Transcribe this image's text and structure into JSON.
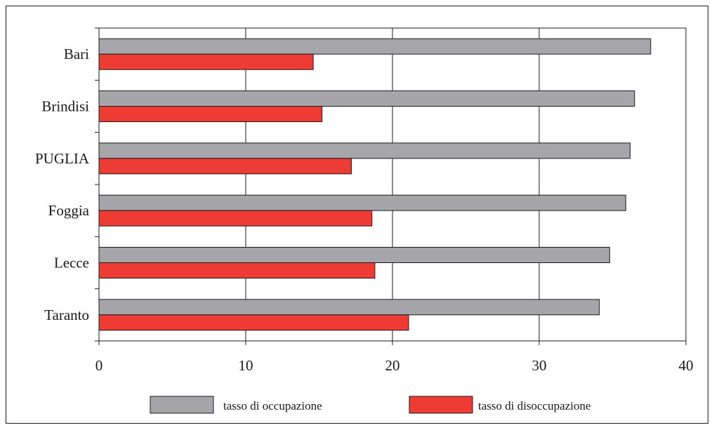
{
  "chart_data": {
    "type": "bar",
    "orientation": "horizontal",
    "categories": [
      "Bari",
      "Brindisi",
      "PUGLIA",
      "Foggia",
      "Lecce",
      "Taranto"
    ],
    "series": [
      {
        "name": "tasso di occupazione",
        "values": [
          37.6,
          36.5,
          36.2,
          35.9,
          34.8,
          34.1
        ]
      },
      {
        "name": "tasso di disoccupazione",
        "values": [
          14.6,
          15.2,
          17.2,
          18.6,
          18.8,
          21.1
        ]
      }
    ],
    "title": "",
    "xlabel": "",
    "ylabel": "",
    "xlim": [
      0,
      40
    ],
    "x_ticks": [
      0,
      10,
      20,
      30,
      40
    ],
    "grid": "vertical",
    "legend_position": "bottom",
    "colors": {
      "tasso di occupazione": "#a6a6aa",
      "tasso di disoccupazione": "#ee3b33"
    }
  }
}
